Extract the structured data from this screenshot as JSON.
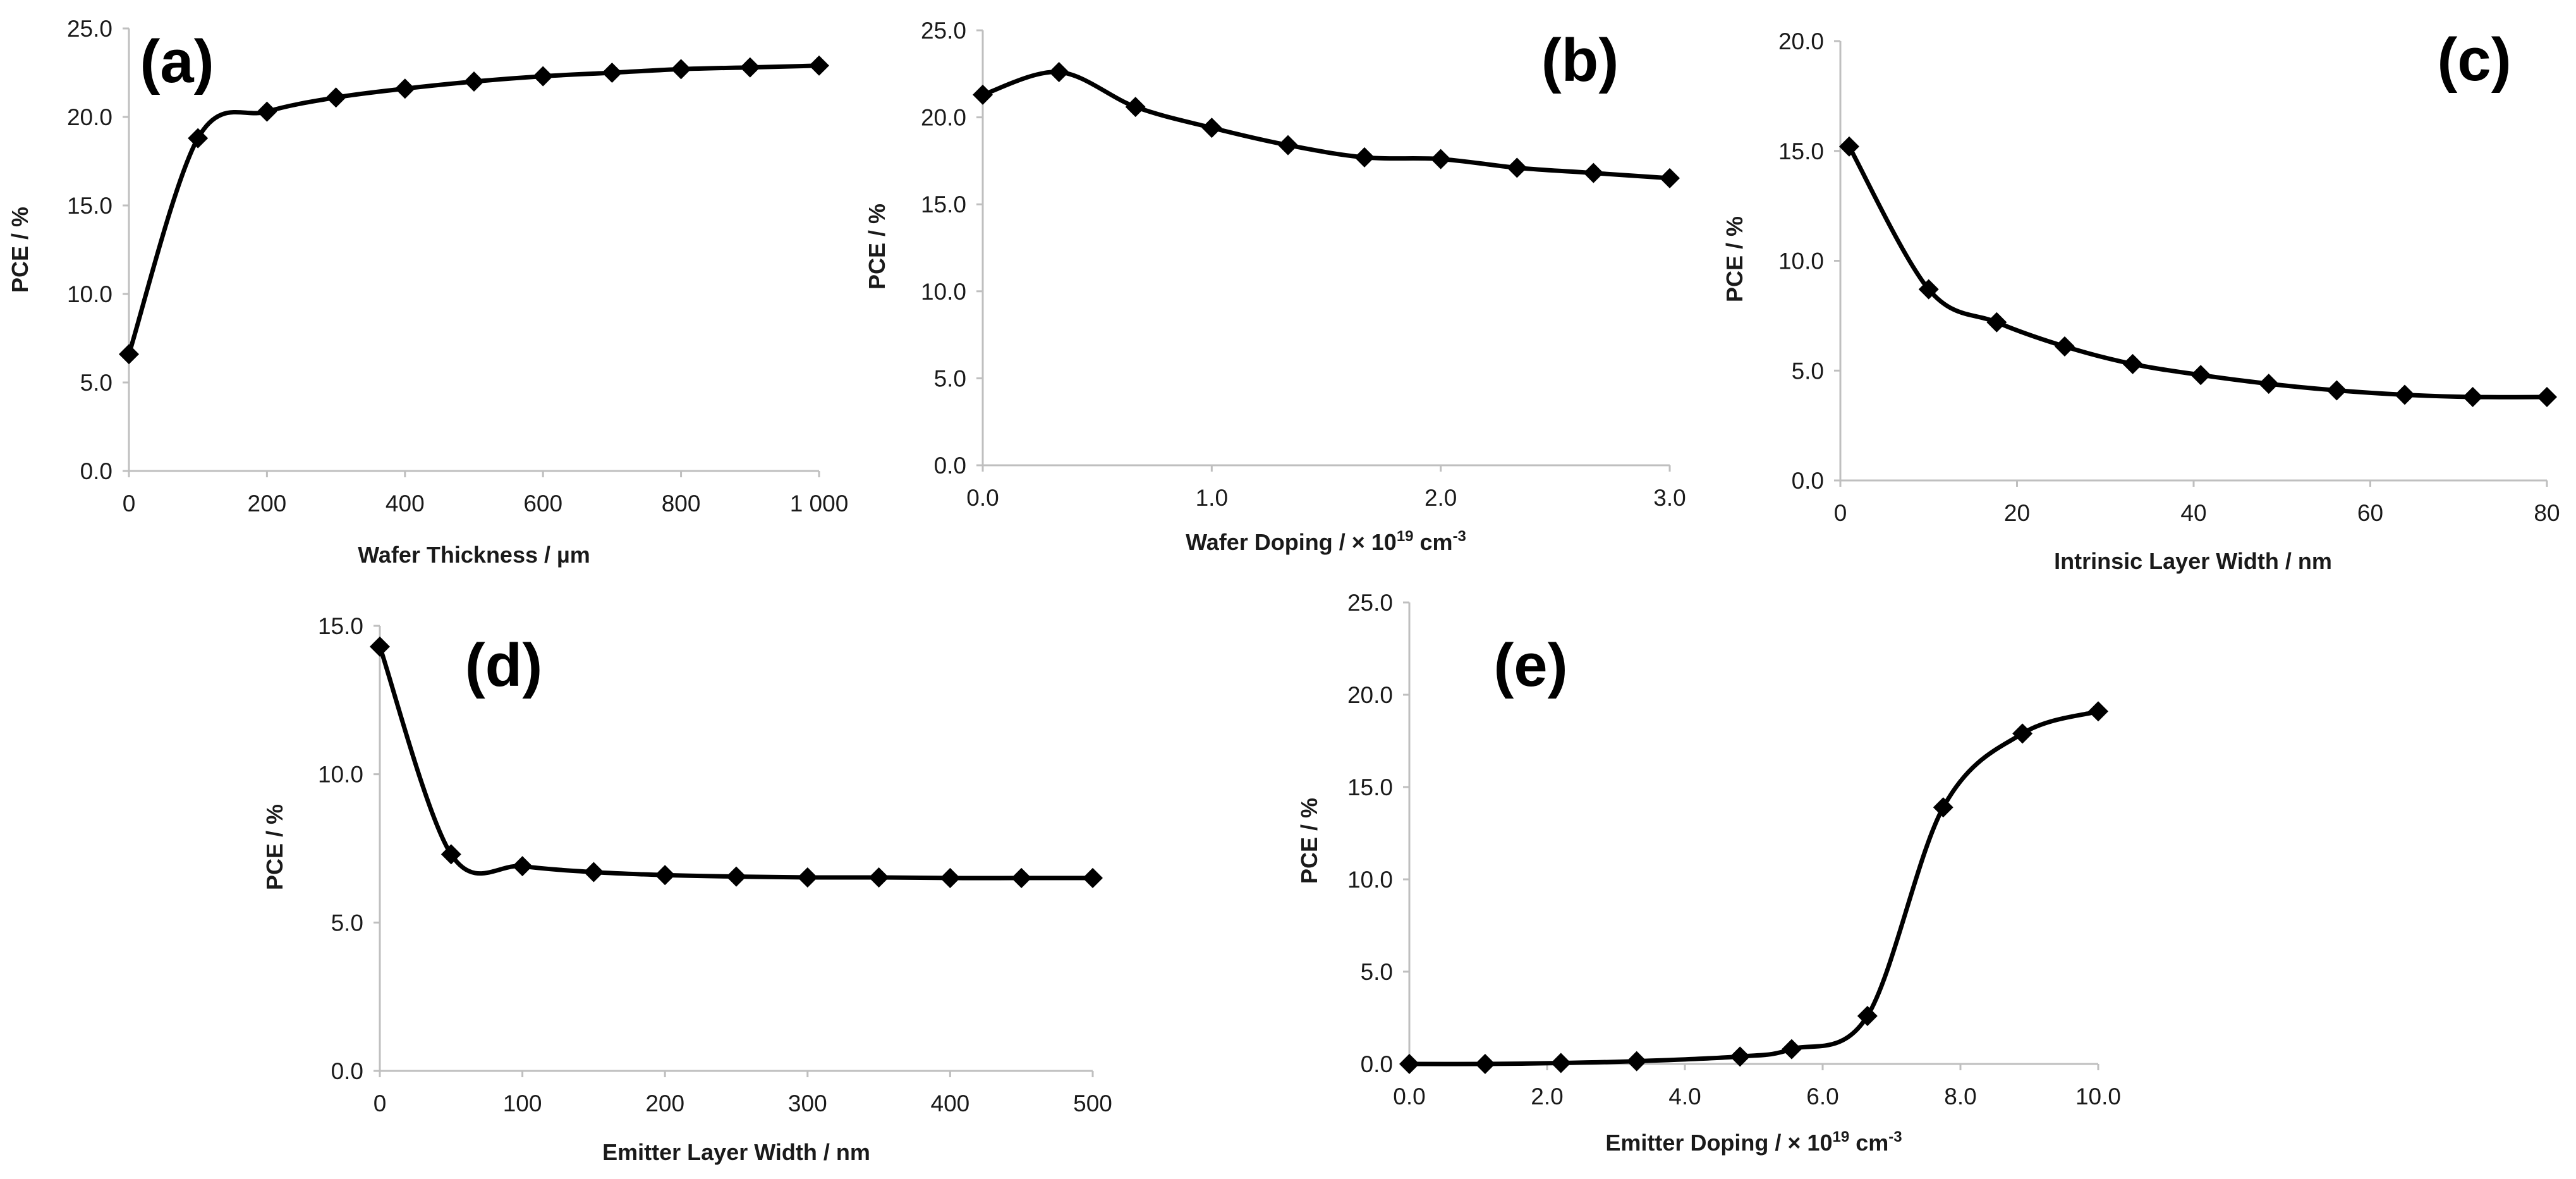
{
  "chart_data": [
    {
      "id": "a",
      "type": "line",
      "panel_label": "(a)",
      "xlabel": "Wafer Thickness / µm",
      "ylabel": "PCE / %",
      "xlim": [
        0,
        1000
      ],
      "ylim": [
        0,
        25
      ],
      "x_ticks": [
        "0",
        "200",
        "400",
        "600",
        "800",
        "1 000"
      ],
      "y_ticks": [
        "0.0",
        "5.0",
        "10.0",
        "15.0",
        "20.0",
        "25.0"
      ],
      "x": [
        0,
        100,
        200,
        300,
        400,
        500,
        600,
        700,
        800,
        900,
        1000
      ],
      "y": [
        6.6,
        18.8,
        20.3,
        21.1,
        21.6,
        22.0,
        22.3,
        22.5,
        22.7,
        22.8,
        22.9
      ]
    },
    {
      "id": "b",
      "type": "line",
      "panel_label": "(b)",
      "xlabel": "Wafer Doping / × 10",
      "xlabel_sup": "19",
      "xlabel_unit": " cm",
      "xlabel_unit_sup": "-3",
      "ylabel": "PCE / %",
      "xlim": [
        0,
        3
      ],
      "ylim": [
        0,
        25
      ],
      "x_ticks": [
        "0.0",
        "1.0",
        "2.0",
        "3.0"
      ],
      "y_ticks": [
        "0.0",
        "5.0",
        "10.0",
        "15.0",
        "20.0",
        "25.0"
      ],
      "x": [
        0.0,
        0.333,
        0.667,
        1.0,
        1.333,
        1.667,
        2.0,
        2.333,
        2.667,
        3.0
      ],
      "y": [
        21.3,
        22.6,
        20.6,
        19.4,
        18.4,
        17.7,
        17.6,
        17.1,
        16.8,
        16.5
      ]
    },
    {
      "id": "c",
      "type": "line",
      "panel_label": "(c)",
      "xlabel": "Intrinsic Layer Width / nm",
      "ylabel": "PCE / %",
      "xlim": [
        0,
        80
      ],
      "ylim": [
        0,
        20
      ],
      "x_ticks": [
        "0",
        "20",
        "40",
        "60",
        "80"
      ],
      "y_ticks": [
        "0.0",
        "5.0",
        "10.0",
        "15.0",
        "20.0"
      ],
      "x": [
        1,
        10,
        17.7,
        25.4,
        33.1,
        40.8,
        48.5,
        56.2,
        63.9,
        71.6,
        80
      ],
      "y": [
        15.2,
        8.7,
        7.2,
        6.1,
        5.3,
        4.8,
        4.4,
        4.1,
        3.9,
        3.8,
        3.8
      ]
    },
    {
      "id": "d",
      "type": "line",
      "panel_label": "(d)",
      "xlabel": "Emitter Layer Width / nm",
      "ylabel": "PCE / %",
      "xlim": [
        0,
        500
      ],
      "ylim": [
        0,
        15
      ],
      "x_ticks": [
        "0",
        "100",
        "200",
        "300",
        "400",
        "500"
      ],
      "y_ticks": [
        "0.0",
        "5.0",
        "10.0",
        "15.0"
      ],
      "x": [
        0,
        50,
        100,
        150,
        200,
        250,
        300,
        350,
        400,
        450,
        500
      ],
      "y": [
        14.3,
        7.3,
        6.9,
        6.7,
        6.6,
        6.55,
        6.52,
        6.52,
        6.5,
        6.5,
        6.5
      ]
    },
    {
      "id": "e",
      "type": "line",
      "panel_label": "(e)",
      "xlabel": "Emitter Doping / × 10",
      "xlabel_sup": "19",
      "xlabel_unit": " cm",
      "xlabel_unit_sup": "-3",
      "ylabel": "PCE / %",
      "xlim": [
        0,
        10
      ],
      "ylim": [
        0,
        25
      ],
      "x_ticks": [
        "0.0",
        "2.0",
        "4.0",
        "6.0",
        "8.0",
        "10.0"
      ],
      "y_ticks": [
        "0.0",
        "5.0",
        "10.0",
        "15.0",
        "20.0",
        "25.0"
      ],
      "x": [
        0.0,
        1.1,
        2.2,
        3.3,
        4.8,
        5.55,
        6.65,
        7.75,
        8.9,
        10.0
      ],
      "y": [
        0.0,
        0.0,
        0.05,
        0.15,
        0.4,
        0.8,
        2.6,
        13.9,
        17.9,
        19.1
      ]
    }
  ]
}
